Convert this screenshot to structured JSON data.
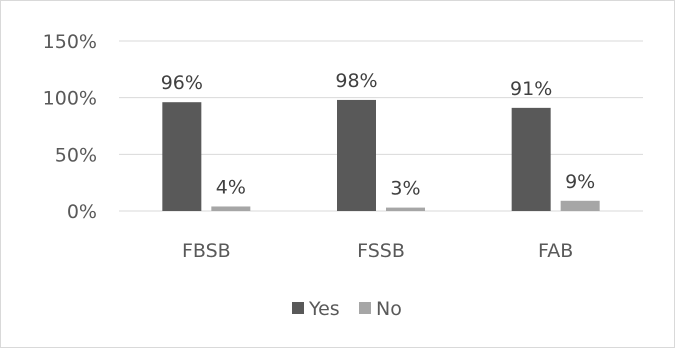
{
  "chart_data": {
    "type": "bar",
    "categories": [
      "FBSB",
      "FSSB",
      "FAB"
    ],
    "series": [
      {
        "name": "Yes",
        "values": [
          96,
          98,
          91
        ],
        "labels": [
          "96%",
          "98%",
          "91%"
        ],
        "color": "#595959"
      },
      {
        "name": "No",
        "values": [
          4,
          3,
          9
        ],
        "labels": [
          "4%",
          "3%",
          "9%"
        ],
        "color": "#a6a6a6"
      }
    ],
    "ylim": [
      0,
      150
    ],
    "yticks": [
      0,
      50,
      100,
      150
    ],
    "ytick_labels": [
      "0%",
      "50%",
      "100%",
      "150%"
    ],
    "grid": true,
    "legend": "bottom",
    "title": "",
    "xlabel": "",
    "ylabel": ""
  }
}
